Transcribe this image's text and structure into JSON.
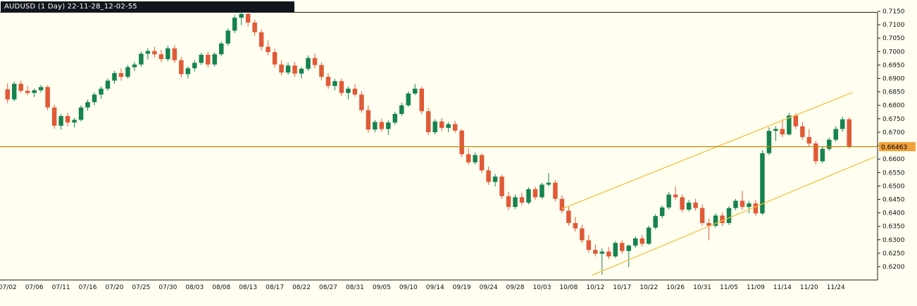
{
  "header": {
    "title": "AUDUSD (1 Day) 22-11-28_12-02-55",
    "bg": "#11151c",
    "text_color": "#ffffff"
  },
  "chart_data": {
    "type": "candlestick",
    "title": "AUDUSD (1 Day) 22-11-28_12-02-55",
    "symbol": "AUDUSD",
    "timeframe": "1 Day",
    "snapshot_time": "22-11-28_12-02-55",
    "colors": {
      "bull": "#16834f",
      "bear": "#e05a38",
      "background": "#fffef0",
      "axis_text": "#111111",
      "border": "#1a1a1a",
      "trend": "#f4c23f",
      "price_line": "#b8860b"
    },
    "y_axis": {
      "top_price": 0.715,
      "bottom_price": 0.62,
      "tick_step": 0.005,
      "ticks": [
        "0.7150",
        "0.7100",
        "0.7050",
        "0.7000",
        "0.6950",
        "0.6900",
        "0.6850",
        "0.6800",
        "0.6750",
        "0.6700",
        "0.6650",
        "0.6600",
        "0.6550",
        "0.6500",
        "0.6450",
        "0.6400",
        "0.6350",
        "0.6300",
        "0.6250",
        "0.6200"
      ]
    },
    "x_axis": {
      "label_every_n_candles": 4,
      "labels": [
        "07/02",
        "07/06",
        "07/11",
        "07/16",
        "07/20",
        "07/25",
        "07/30",
        "08/03",
        "08/08",
        "08/13",
        "08/17",
        "08/22",
        "08/27",
        "08/31",
        "09/05",
        "09/10",
        "09/14",
        "09/19",
        "09/24",
        "09/28",
        "10/03",
        "10/08",
        "10/12",
        "10/17",
        "10/22",
        "10/26",
        "10/31",
        "11/05",
        "11/09",
        "11/14",
        "11/20",
        "11/24"
      ]
    },
    "current_price": {
      "value": 0.66463,
      "label": "0.66463",
      "badge_bg": "#efa23b",
      "badge_text_color": "#000000"
    },
    "trendlines": [
      {
        "name": "channel-upper",
        "from_index": 83,
        "from_price": 0.6415,
        "to_index": 126.5,
        "to_price": 0.6848
      },
      {
        "name": "channel-lower",
        "from_index": 87.5,
        "from_price": 0.6168,
        "to_index": 130,
        "to_price": 0.661
      }
    ],
    "candles": {
      "ohlc": [
        [
          0.686,
          0.6882,
          0.6808,
          0.6822
        ],
        [
          0.6822,
          0.6888,
          0.6815,
          0.688
        ],
        [
          0.688,
          0.6892,
          0.6846,
          0.6854
        ],
        [
          0.6854,
          0.6872,
          0.6838,
          0.6846
        ],
        [
          0.6846,
          0.6862,
          0.683,
          0.6856
        ],
        [
          0.6856,
          0.6876,
          0.6848,
          0.6868
        ],
        [
          0.6868,
          0.6874,
          0.6782,
          0.6792
        ],
        [
          0.6792,
          0.6802,
          0.6712,
          0.6724
        ],
        [
          0.6724,
          0.6768,
          0.671,
          0.676
        ],
        [
          0.676,
          0.6772,
          0.6722,
          0.6736
        ],
        [
          0.6736,
          0.6754,
          0.6718,
          0.6746
        ],
        [
          0.6746,
          0.68,
          0.674,
          0.6792
        ],
        [
          0.6792,
          0.6822,
          0.678,
          0.6812
        ],
        [
          0.6812,
          0.6848,
          0.68,
          0.684
        ],
        [
          0.684,
          0.687,
          0.6824,
          0.6862
        ],
        [
          0.6862,
          0.69,
          0.6854,
          0.6892
        ],
        [
          0.6892,
          0.6928,
          0.688,
          0.692
        ],
        [
          0.692,
          0.6938,
          0.6892,
          0.6906
        ],
        [
          0.6906,
          0.695,
          0.69,
          0.6942
        ],
        [
          0.6942,
          0.6962,
          0.6928,
          0.6952
        ],
        [
          0.6952,
          0.7,
          0.6944,
          0.6992
        ],
        [
          0.6992,
          0.7012,
          0.697,
          0.7002
        ],
        [
          0.7002,
          0.7018,
          0.6978,
          0.699
        ],
        [
          0.699,
          0.7006,
          0.696,
          0.6972
        ],
        [
          0.6972,
          0.7022,
          0.6964,
          0.7012
        ],
        [
          0.7012,
          0.7024,
          0.6958,
          0.6968
        ],
        [
          0.6968,
          0.698,
          0.6904,
          0.6916
        ],
        [
          0.6916,
          0.6946,
          0.69,
          0.6938
        ],
        [
          0.6938,
          0.6968,
          0.6926,
          0.6958
        ],
        [
          0.6958,
          0.6996,
          0.695,
          0.6988
        ],
        [
          0.6988,
          0.7,
          0.694,
          0.6952
        ],
        [
          0.6952,
          0.6998,
          0.6944,
          0.699
        ],
        [
          0.699,
          0.7038,
          0.6982,
          0.703
        ],
        [
          0.703,
          0.7086,
          0.7022,
          0.7078
        ],
        [
          0.7078,
          0.7136,
          0.7068,
          0.7126
        ],
        [
          0.7126,
          0.715,
          0.7098,
          0.714
        ],
        [
          0.714,
          0.7148,
          0.7094,
          0.7108
        ],
        [
          0.7108,
          0.7118,
          0.7058,
          0.7072
        ],
        [
          0.7072,
          0.7082,
          0.7004,
          0.7018
        ],
        [
          0.7018,
          0.7042,
          0.6986,
          0.6998
        ],
        [
          0.6998,
          0.701,
          0.694,
          0.6952
        ],
        [
          0.6952,
          0.6968,
          0.6912,
          0.6922
        ],
        [
          0.6922,
          0.6958,
          0.6914,
          0.6948
        ],
        [
          0.6948,
          0.6962,
          0.6906,
          0.6918
        ],
        [
          0.6918,
          0.6942,
          0.69,
          0.6936
        ],
        [
          0.6936,
          0.6986,
          0.6928,
          0.6976
        ],
        [
          0.6976,
          0.6992,
          0.6938,
          0.695
        ],
        [
          0.695,
          0.696,
          0.6894,
          0.6906
        ],
        [
          0.6906,
          0.692,
          0.6862,
          0.6872
        ],
        [
          0.6872,
          0.6898,
          0.6856,
          0.689
        ],
        [
          0.689,
          0.69,
          0.6834,
          0.6846
        ],
        [
          0.6846,
          0.687,
          0.6822,
          0.6862
        ],
        [
          0.6862,
          0.6878,
          0.6832,
          0.684
        ],
        [
          0.684,
          0.6852,
          0.6772,
          0.6782
        ],
        [
          0.6782,
          0.68,
          0.6698,
          0.671
        ],
        [
          0.671,
          0.6746,
          0.67,
          0.6738
        ],
        [
          0.6738,
          0.675,
          0.6702,
          0.6712
        ],
        [
          0.6712,
          0.6744,
          0.669,
          0.6736
        ],
        [
          0.6736,
          0.6776,
          0.6728,
          0.6768
        ],
        [
          0.6768,
          0.681,
          0.676,
          0.68
        ],
        [
          0.68,
          0.6852,
          0.6794,
          0.6844
        ],
        [
          0.6844,
          0.688,
          0.6838,
          0.6862
        ],
        [
          0.6862,
          0.687,
          0.6768,
          0.6778
        ],
        [
          0.6778,
          0.679,
          0.669,
          0.67
        ],
        [
          0.67,
          0.6748,
          0.6692,
          0.674
        ],
        [
          0.674,
          0.6752,
          0.6704,
          0.6716
        ],
        [
          0.6716,
          0.6738,
          0.67,
          0.673
        ],
        [
          0.673,
          0.6742,
          0.6698,
          0.6706
        ],
        [
          0.6706,
          0.6712,
          0.6608,
          0.6618
        ],
        [
          0.6618,
          0.664,
          0.6578,
          0.6588
        ],
        [
          0.6588,
          0.6625,
          0.658,
          0.6615
        ],
        [
          0.6615,
          0.6622,
          0.6548,
          0.6558
        ],
        [
          0.6558,
          0.6572,
          0.6504,
          0.6515
        ],
        [
          0.6515,
          0.6545,
          0.6498,
          0.6535
        ],
        [
          0.6535,
          0.6542,
          0.6452,
          0.6462
        ],
        [
          0.6462,
          0.6478,
          0.641,
          0.6422
        ],
        [
          0.6422,
          0.6468,
          0.6414,
          0.6458
        ],
        [
          0.6458,
          0.6475,
          0.6428,
          0.6438
        ],
        [
          0.6438,
          0.6495,
          0.6432,
          0.6488
        ],
        [
          0.6488,
          0.6498,
          0.6448,
          0.6458
        ],
        [
          0.6458,
          0.6512,
          0.6452,
          0.6505
        ],
        [
          0.6505,
          0.6548,
          0.6498,
          0.6512
        ],
        [
          0.6512,
          0.6522,
          0.6442,
          0.6452
        ],
        [
          0.6452,
          0.6465,
          0.6398,
          0.6408
        ],
        [
          0.6408,
          0.6422,
          0.6352,
          0.6362
        ],
        [
          0.6362,
          0.6385,
          0.633,
          0.6342
        ],
        [
          0.6342,
          0.6355,
          0.6288,
          0.6298
        ],
        [
          0.6298,
          0.6318,
          0.6252,
          0.6262
        ],
        [
          0.6262,
          0.6282,
          0.6238,
          0.6248
        ],
        [
          0.6248,
          0.6268,
          0.617,
          0.6256
        ],
        [
          0.6256,
          0.6272,
          0.6228,
          0.6238
        ],
        [
          0.6238,
          0.6295,
          0.6232,
          0.6288
        ],
        [
          0.6288,
          0.6298,
          0.6248,
          0.6258
        ],
        [
          0.6258,
          0.6282,
          0.6198,
          0.6278
        ],
        [
          0.6278,
          0.6312,
          0.627,
          0.6305
        ],
        [
          0.6305,
          0.6318,
          0.6275,
          0.6285
        ],
        [
          0.6285,
          0.6352,
          0.628,
          0.6345
        ],
        [
          0.6345,
          0.6395,
          0.6338,
          0.6388
        ],
        [
          0.6388,
          0.6428,
          0.638,
          0.642
        ],
        [
          0.642,
          0.6478,
          0.6412,
          0.6468
        ],
        [
          0.6468,
          0.6498,
          0.6448,
          0.6458
        ],
        [
          0.6458,
          0.6468,
          0.6402,
          0.6412
        ],
        [
          0.6412,
          0.6448,
          0.6405,
          0.6438
        ],
        [
          0.6438,
          0.6452,
          0.6408,
          0.6418
        ],
        [
          0.6418,
          0.6432,
          0.6352,
          0.6362
        ],
        [
          0.6362,
          0.6378,
          0.6298,
          0.6352
        ],
        [
          0.6352,
          0.6398,
          0.6344,
          0.639
        ],
        [
          0.639,
          0.6402,
          0.6352,
          0.6362
        ],
        [
          0.6362,
          0.6425,
          0.6355,
          0.6418
        ],
        [
          0.6418,
          0.6452,
          0.641,
          0.6445
        ],
        [
          0.6445,
          0.6482,
          0.6412,
          0.6422
        ],
        [
          0.6422,
          0.6445,
          0.6398,
          0.6435
        ],
        [
          0.6435,
          0.6448,
          0.6388,
          0.6398
        ],
        [
          0.6398,
          0.6632,
          0.6392,
          0.6622
        ],
        [
          0.6622,
          0.6718,
          0.6615,
          0.6705
        ],
        [
          0.6705,
          0.6722,
          0.6668,
          0.6712
        ],
        [
          0.6712,
          0.6748,
          0.6682,
          0.6692
        ],
        [
          0.6692,
          0.6772,
          0.6688,
          0.6762
        ],
        [
          0.6762,
          0.677,
          0.6712,
          0.6722
        ],
        [
          0.6722,
          0.6738,
          0.6672,
          0.6682
        ],
        [
          0.6682,
          0.6712,
          0.6648,
          0.6658
        ],
        [
          0.6658,
          0.6668,
          0.658,
          0.6592
        ],
        [
          0.6592,
          0.6645,
          0.6585,
          0.6638
        ],
        [
          0.6638,
          0.668,
          0.663,
          0.6672
        ],
        [
          0.6672,
          0.6722,
          0.6665,
          0.6712
        ],
        [
          0.6712,
          0.6758,
          0.6702,
          0.6748
        ],
        [
          0.6748,
          0.6755,
          0.664,
          0.6646
        ]
      ]
    }
  }
}
